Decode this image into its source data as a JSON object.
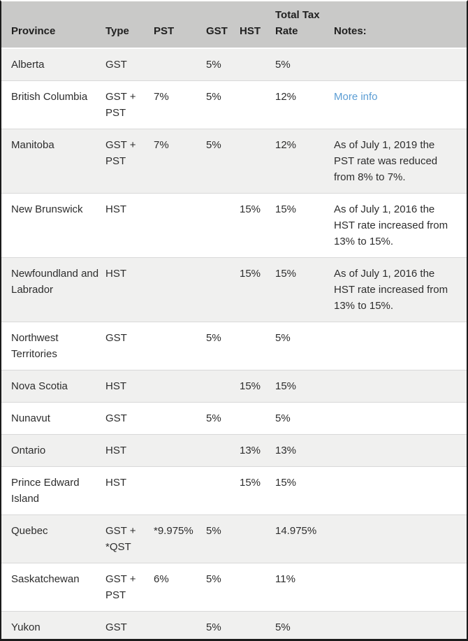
{
  "columns": [
    "Province",
    "Type",
    "PST",
    "GST",
    "HST",
    "Total Tax Rate",
    "Notes:"
  ],
  "rows": [
    {
      "province": "Alberta",
      "type": "GST",
      "pst": "",
      "gst": "5%",
      "hst": "",
      "total": "5%",
      "note": ""
    },
    {
      "province": "British Columbia",
      "type": "GST + PST",
      "pst": "7%",
      "gst": "5%",
      "hst": "",
      "total": "12%",
      "note": "",
      "note_link": "More info"
    },
    {
      "province": "Manitoba",
      "type": "GST + PST",
      "pst": "7%",
      "gst": "5%",
      "hst": "",
      "total": "12%",
      "note": "As of July 1, 2019 the PST rate was reduced from 8% to 7%."
    },
    {
      "province": "New Brunswick",
      "type": "HST",
      "pst": "",
      "gst": "",
      "hst": "15%",
      "total": "15%",
      "note": "As of July 1, 2016 the HST rate increased from 13% to 15%."
    },
    {
      "province": "Newfoundland and Labrador",
      "type": "HST",
      "pst": "",
      "gst": "",
      "hst": "15%",
      "total": "15%",
      "note": "As of July 1, 2016 the HST rate increased from 13% to 15%."
    },
    {
      "province": "Northwest Territories",
      "type": "GST",
      "pst": "",
      "gst": "5%",
      "hst": "",
      "total": "5%",
      "note": ""
    },
    {
      "province": "Nova Scotia",
      "type": "HST",
      "pst": "",
      "gst": "",
      "hst": "15%",
      "total": "15%",
      "note": ""
    },
    {
      "province": "Nunavut",
      "type": "GST",
      "pst": "",
      "gst": "5%",
      "hst": "",
      "total": "5%",
      "note": ""
    },
    {
      "province": "Ontario",
      "type": "HST",
      "pst": "",
      "gst": "",
      "hst": "13%",
      "total": "13%",
      "note": ""
    },
    {
      "province": "Prince Edward Island",
      "type": "HST",
      "pst": "",
      "gst": "",
      "hst": "15%",
      "total": "15%",
      "note": ""
    },
    {
      "province": "Quebec",
      "type": "GST + *QST",
      "pst": "*9.975%",
      "gst": "5%",
      "hst": "",
      "total": "14.975%",
      "note": ""
    },
    {
      "province": "Saskatchewan",
      "type": "GST + PST",
      "pst": "6%",
      "gst": "5%",
      "hst": "",
      "total": "11%",
      "note": ""
    },
    {
      "province": "Yukon",
      "type": "GST",
      "pst": "",
      "gst": "5%",
      "hst": "",
      "total": "5%",
      "note": ""
    }
  ],
  "colors": {
    "header_bg": "#c9c9c8",
    "row_alt_bg": "#f0f0ef",
    "link": "#5b9dd4",
    "border_dark": "#1b1b1b",
    "text": "#2d2d2d"
  }
}
